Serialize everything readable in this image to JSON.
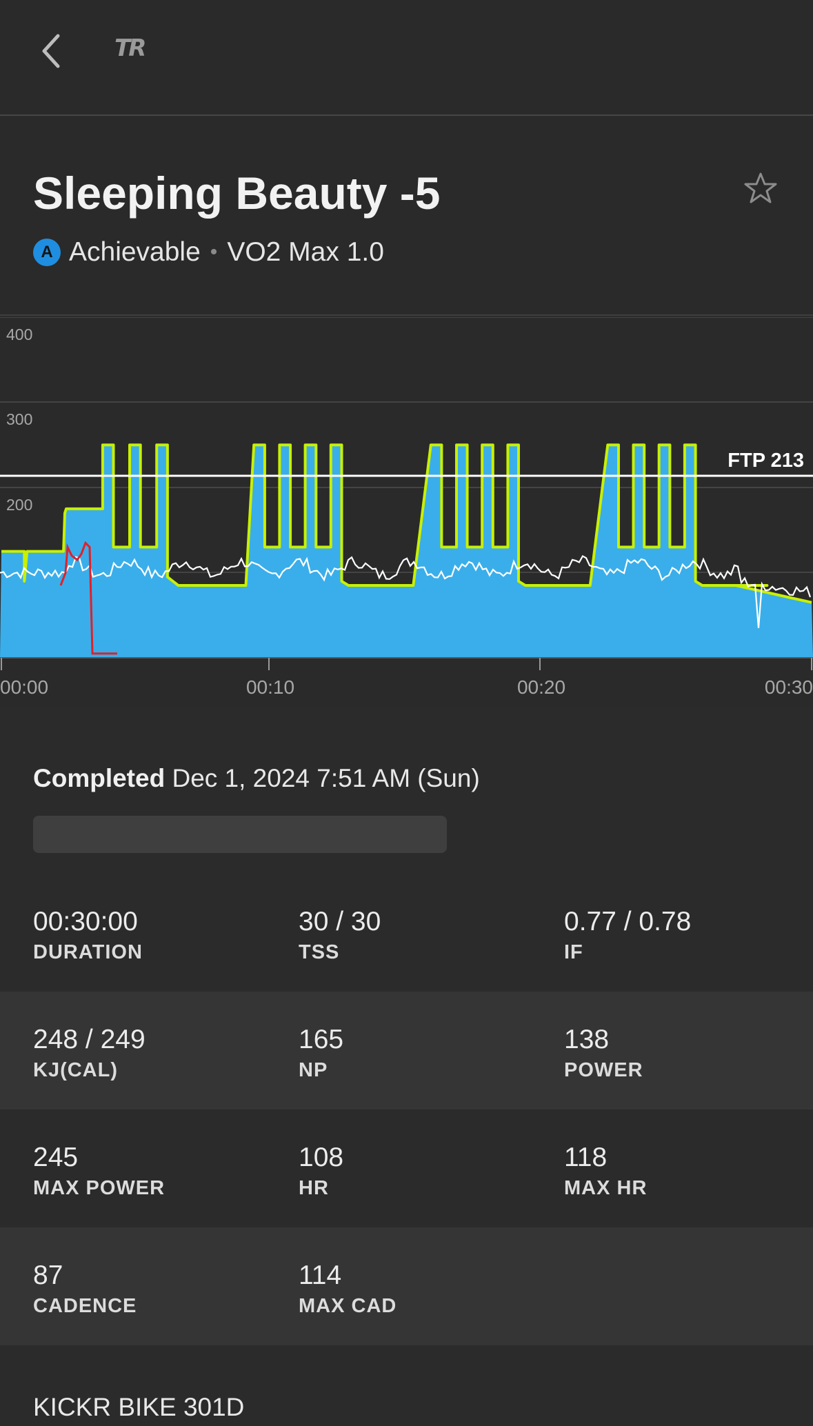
{
  "header": {
    "logo": "TR"
  },
  "workout": {
    "title": "Sleeping Beauty -5",
    "badge_letter": "A",
    "difficulty": "Achievable",
    "separator": "•",
    "zone": "VO2 Max 1.0"
  },
  "chart_data": {
    "type": "area",
    "y_ticks": [
      "400",
      "300",
      "200"
    ],
    "x_ticks": [
      "00:00",
      "00:10",
      "00:20",
      "00:30"
    ],
    "ftp_label": "FTP 213",
    "ftp_value": 213,
    "ylim": [
      0,
      400
    ],
    "xlim_minutes": [
      0,
      30
    ],
    "grid": true,
    "series": [
      {
        "role": "target power",
        "color": "#c8f000"
      },
      {
        "role": "actual power",
        "color": "#ffffff"
      },
      {
        "role": "cadence",
        "color": "#e0202a"
      }
    ]
  },
  "completed": {
    "label": "Completed",
    "value": "Dec 1, 2024 7:51 AM (Sun)"
  },
  "stats": [
    [
      {
        "value": "00:30:00",
        "label": "DURATION"
      },
      {
        "value": "30 / 30",
        "label": "TSS"
      },
      {
        "value": "0.77 / 0.78",
        "label": "IF"
      }
    ],
    [
      {
        "value": "248 / 249",
        "label": "KJ(CAL)"
      },
      {
        "value": "165",
        "label": "NP"
      },
      {
        "value": "138",
        "label": "POWER"
      }
    ],
    [
      {
        "value": "245",
        "label": "MAX POWER"
      },
      {
        "value": "108",
        "label": "HR"
      },
      {
        "value": "118",
        "label": "MAX HR"
      }
    ],
    [
      {
        "value": "87",
        "label": "CADENCE"
      },
      {
        "value": "114",
        "label": "MAX CAD"
      },
      {
        "value": "",
        "label": ""
      }
    ]
  ],
  "device": "KICKR BIKE 301D",
  "colors": {
    "accent_blue": "#3aaeea",
    "target_outline": "#c8f000",
    "cadence": "#e0202a",
    "background": "#2b2b2b"
  }
}
